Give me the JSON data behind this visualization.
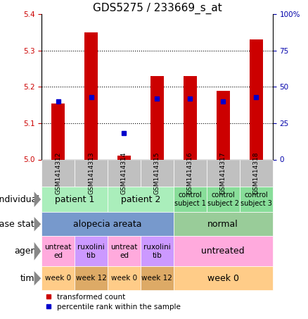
{
  "title": "GDS5275 / 233669_s_at",
  "samples": [
    "GSM1414312",
    "GSM1414313",
    "GSM1414314",
    "GSM1414315",
    "GSM1414316",
    "GSM1414317",
    "GSM1414318"
  ],
  "transformed_count": [
    5.155,
    5.35,
    5.01,
    5.23,
    5.23,
    5.19,
    5.33
  ],
  "percentile_rank": [
    40,
    43,
    18,
    42,
    42,
    40,
    43
  ],
  "ymin": 5.0,
  "ymax": 5.4,
  "yticks": [
    5.0,
    5.1,
    5.2,
    5.3,
    5.4
  ],
  "y2min": 0,
  "y2max": 100,
  "y2ticks": [
    0,
    25,
    50,
    75,
    100
  ],
  "y2ticklabels": [
    "0",
    "25",
    "50",
    "75",
    "100%"
  ],
  "bar_color": "#cc0000",
  "dot_color": "#0000cc",
  "bar_width": 0.4,
  "annotation_rows": [
    {
      "label": "individual",
      "cells": [
        {
          "text": "patient 1",
          "span": 2,
          "color": "#aaeebb",
          "fontsize": 9
        },
        {
          "text": "patient 2",
          "span": 2,
          "color": "#aaeebb",
          "fontsize": 9
        },
        {
          "text": "control\nsubject 1",
          "span": 1,
          "color": "#88dd99",
          "fontsize": 7
        },
        {
          "text": "control\nsubject 2",
          "span": 1,
          "color": "#88dd99",
          "fontsize": 7
        },
        {
          "text": "control\nsubject 3",
          "span": 1,
          "color": "#88dd99",
          "fontsize": 7
        }
      ]
    },
    {
      "label": "disease state",
      "cells": [
        {
          "text": "alopecia areata",
          "span": 4,
          "color": "#7799cc",
          "fontsize": 9
        },
        {
          "text": "normal",
          "span": 3,
          "color": "#99cc99",
          "fontsize": 9
        }
      ]
    },
    {
      "label": "agent",
      "cells": [
        {
          "text": "untreat\ned",
          "span": 1,
          "color": "#ffaadd",
          "fontsize": 7.5
        },
        {
          "text": "ruxolini\ntib",
          "span": 1,
          "color": "#cc99ff",
          "fontsize": 7.5
        },
        {
          "text": "untreat\ned",
          "span": 1,
          "color": "#ffaadd",
          "fontsize": 7.5
        },
        {
          "text": "ruxolini\ntib",
          "span": 1,
          "color": "#cc99ff",
          "fontsize": 7.5
        },
        {
          "text": "untreated",
          "span": 3,
          "color": "#ffaadd",
          "fontsize": 9
        }
      ]
    },
    {
      "label": "time",
      "cells": [
        {
          "text": "week 0",
          "span": 1,
          "color": "#ffcc88",
          "fontsize": 7.5
        },
        {
          "text": "week 12",
          "span": 1,
          "color": "#ddaa66",
          "fontsize": 7.5
        },
        {
          "text": "week 0",
          "span": 1,
          "color": "#ffcc88",
          "fontsize": 7.5
        },
        {
          "text": "week 12",
          "span": 1,
          "color": "#ddaa66",
          "fontsize": 7.5
        },
        {
          "text": "week 0",
          "span": 3,
          "color": "#ffcc88",
          "fontsize": 9
        }
      ]
    }
  ],
  "legend": [
    {
      "color": "#cc0000",
      "label": "transformed count"
    },
    {
      "color": "#0000cc",
      "label": "percentile rank within the sample"
    }
  ],
  "gsm_bg_color": "#c0c0c0",
  "title_fontsize": 11,
  "tick_fontsize": 7.5,
  "annot_label_fontsize": 9,
  "gsm_fontsize": 6.5,
  "legend_fontsize": 7.5
}
